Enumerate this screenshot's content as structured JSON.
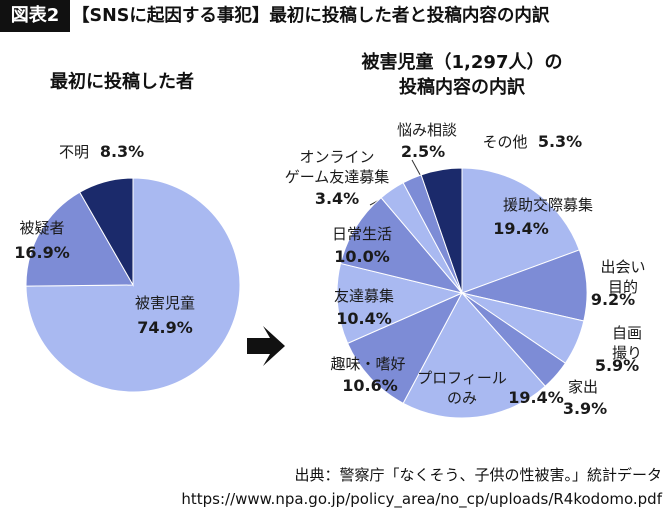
{
  "title_tag": "図表2",
  "title": "【SNSに起因する事犯】最初に投稿した者と投稿内容の内訳",
  "source": "出典：警察庁「なくそう、子供の性被害。」統計データ",
  "source_url": "https://www.npa.go.jp/policy_area/no_cp/uploads/R4kodomo.pdf",
  "chart_data": [
    {
      "type": "pie",
      "title": "最初に投稿した者",
      "categories": [
        "被害児童",
        "被疑者",
        "不明"
      ],
      "values": [
        74.9,
        16.9,
        8.3
      ],
      "value_labels": [
        "74.9%",
        "16.9%",
        "8.3%"
      ],
      "colors": [
        "#a9b9f1",
        "#7d8cd6",
        "#1b2a6b"
      ]
    },
    {
      "type": "pie",
      "title": "被害児童（1,297人）の\n投稿内容の内訳",
      "categories": [
        "援助交際募集",
        "出会い目的",
        "自画撮り",
        "家出",
        "プロフィール\nのみ",
        "趣味・嗜好",
        "友達募集",
        "日常生活",
        "オンライン\nゲーム友達募集",
        "悩み相談",
        "その他"
      ],
      "values": [
        19.4,
        9.2,
        5.9,
        3.9,
        19.4,
        10.6,
        10.4,
        10.0,
        3.4,
        2.5,
        5.3
      ],
      "value_labels": [
        "19.4%",
        "9.2%",
        "5.9%",
        "3.9%",
        "19.4%",
        "10.6%",
        "10.4%",
        "10.0%",
        "3.4%",
        "2.5%",
        "5.3%"
      ],
      "colors": [
        "#a9b9f1",
        "#7d8cd6",
        "#a9b9f1",
        "#7d8cd6",
        "#a9b9f1",
        "#7d8cd6",
        "#a9b9f1",
        "#7d8cd6",
        "#a9b9f1",
        "#7d8cd6",
        "#1b2a6b"
      ]
    }
  ]
}
